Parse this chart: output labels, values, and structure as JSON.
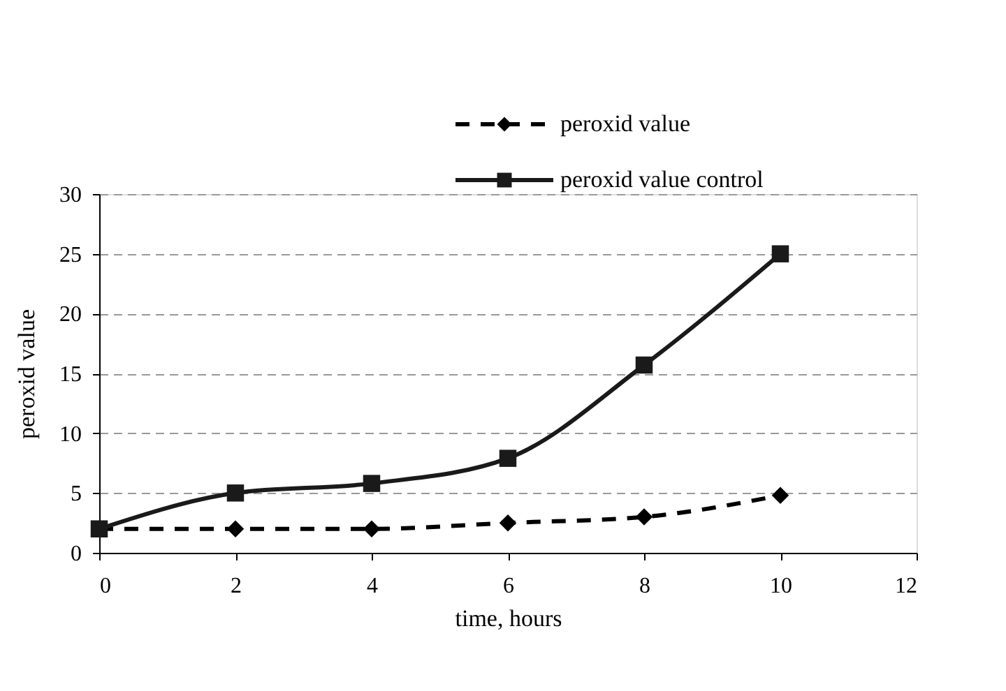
{
  "chart_data": {
    "type": "line",
    "xlabel": "time, hours",
    "ylabel": "peroxid value",
    "x": [
      0,
      2,
      4,
      6,
      8,
      10
    ],
    "series": [
      {
        "name": "peroxid value",
        "color": "#000000",
        "values": [
          2,
          2,
          2,
          2.5,
          3,
          4.8
        ],
        "marker": "diamond",
        "line_style": "dashed"
      },
      {
        "name": "peroxid value control",
        "color": "#1a1a1a",
        "values": [
          2,
          5,
          5.8,
          7.9,
          15.7,
          25
        ],
        "marker": "square",
        "line_style": "solid"
      }
    ],
    "xlim": [
      0,
      12
    ],
    "xticks": [
      0,
      2,
      4,
      6,
      8,
      10,
      12
    ],
    "ylim": [
      0,
      30
    ],
    "yticks": [
      0,
      5,
      10,
      15,
      20,
      25,
      30
    ],
    "grid": "y",
    "legend": "top right"
  }
}
